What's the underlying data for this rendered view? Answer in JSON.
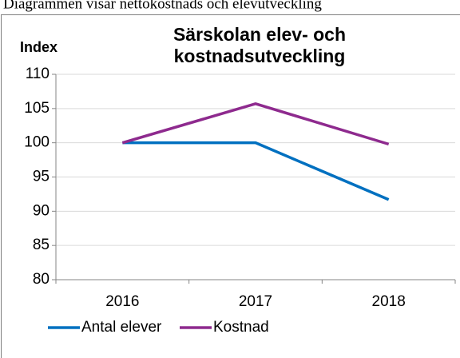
{
  "caption": "Diagrammen visar nettokostnads och elevutveckling",
  "chart_data": {
    "type": "line",
    "title": [
      "Särskolan elev- och",
      "kostnadsutveckling"
    ],
    "ylabel": "Index",
    "categories": [
      "2016",
      "2017",
      "2018"
    ],
    "series": [
      {
        "name": "Antal elever",
        "color": "#0070c0",
        "values": [
          100,
          100,
          91.7
        ]
      },
      {
        "name": "Kostnad",
        "color": "#8e2a8e",
        "values": [
          100,
          105.7,
          99.8
        ]
      }
    ],
    "ylim": [
      80,
      110
    ],
    "yticks": [
      80,
      85,
      90,
      95,
      100,
      105,
      110
    ],
    "grid": true,
    "legend": "bottom"
  }
}
